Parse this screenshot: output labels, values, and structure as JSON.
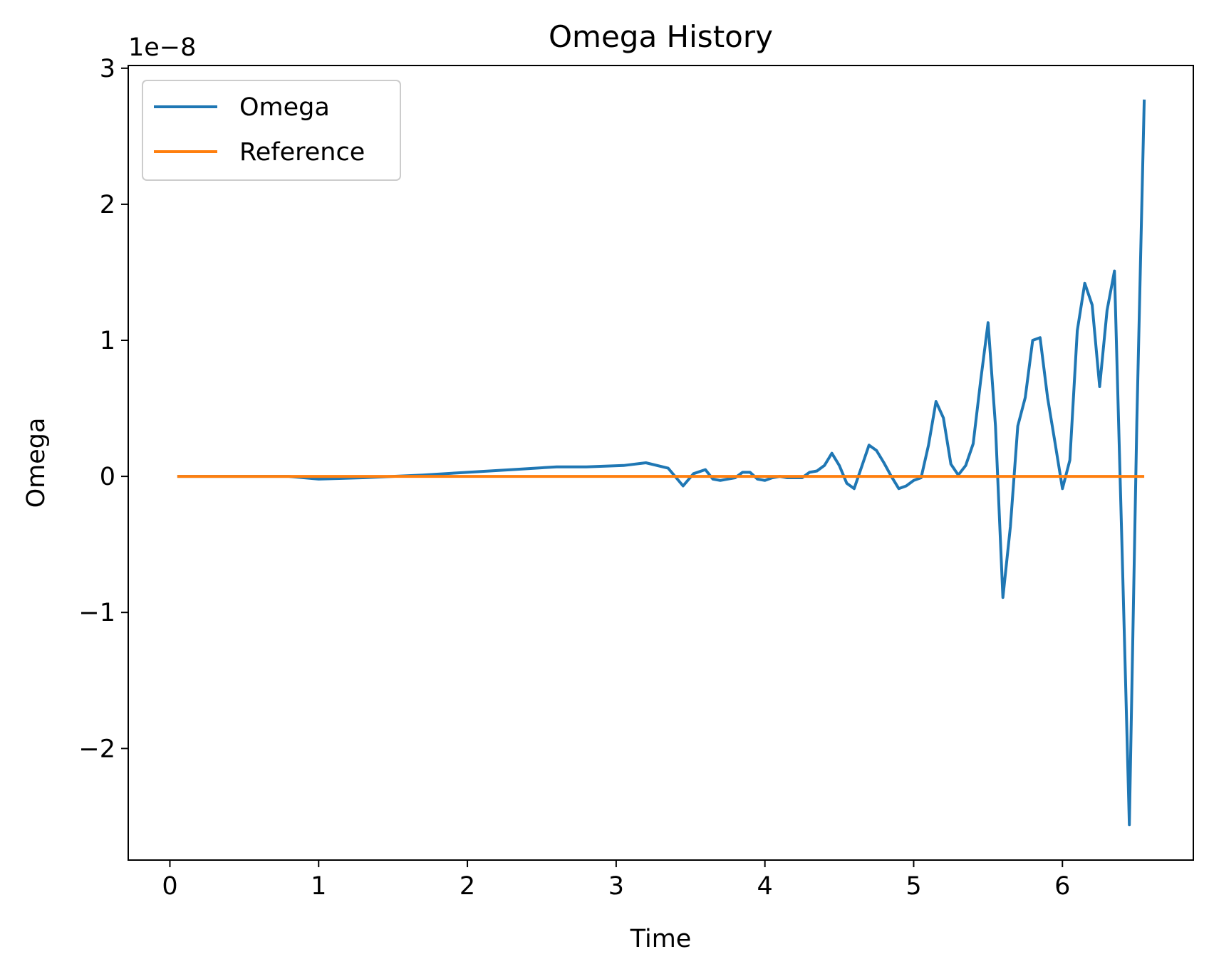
{
  "chart_data": {
    "type": "line",
    "title": "Omega History",
    "xlabel": "Time",
    "ylabel": "Omega",
    "y_offset_label": "1e−8",
    "xlim": [
      -0.28,
      6.88
    ],
    "ylim": [
      -2.82,
      3.02
    ],
    "y_scale_exponent": -8,
    "xticks": [
      0,
      1,
      2,
      3,
      4,
      5,
      6
    ],
    "xtick_labels": [
      "0",
      "1",
      "2",
      "3",
      "4",
      "5",
      "6"
    ],
    "yticks": [
      -2,
      -1,
      0,
      1,
      2,
      3
    ],
    "ytick_labels": [
      "−2",
      "−1",
      "0",
      "1",
      "2",
      "3"
    ],
    "grid": false,
    "legend_position": "upper-left",
    "series": [
      {
        "name": "Omega",
        "color": "#1f77b4",
        "x": [
          0.05,
          0.3,
          0.6,
          0.8,
          1.0,
          1.3,
          1.5,
          1.7,
          2.0,
          2.3,
          2.6,
          2.8,
          3.05,
          3.2,
          3.35,
          3.45,
          3.52,
          3.6,
          3.65,
          3.7,
          3.8,
          3.85,
          3.9,
          3.95,
          4.0,
          4.05,
          4.1,
          4.15,
          4.2,
          4.25,
          4.3,
          4.35,
          4.4,
          4.45,
          4.5,
          4.55,
          4.6,
          4.65,
          4.7,
          4.75,
          4.8,
          4.85,
          4.9,
          4.95,
          5.0,
          5.05,
          5.1,
          5.15,
          5.2,
          5.25,
          5.3,
          5.35,
          5.4,
          5.45,
          5.5,
          5.55,
          5.6,
          5.65,
          5.7,
          5.75,
          5.8,
          5.85,
          5.9,
          5.95,
          6.0,
          6.05,
          6.1,
          6.15,
          6.2,
          6.25,
          6.3,
          6.35,
          6.4,
          6.45,
          6.5,
          6.55
        ],
        "values": [
          0.0,
          0.0,
          0.0,
          0.0,
          -0.02,
          -0.01,
          0.0,
          0.01,
          0.03,
          0.05,
          0.07,
          0.07,
          0.08,
          0.1,
          0.06,
          -0.07,
          0.02,
          0.05,
          -0.02,
          -0.03,
          -0.01,
          0.03,
          0.03,
          -0.02,
          -0.03,
          -0.01,
          0.0,
          -0.01,
          -0.01,
          -0.01,
          0.03,
          0.04,
          0.08,
          0.17,
          0.08,
          -0.05,
          -0.09,
          0.07,
          0.23,
          0.19,
          0.1,
          0.0,
          -0.09,
          -0.07,
          -0.03,
          -0.01,
          0.23,
          0.55,
          0.43,
          0.09,
          0.01,
          0.08,
          0.24,
          0.7,
          1.13,
          0.37,
          -0.89,
          -0.37,
          0.37,
          0.58,
          1.0,
          1.02,
          0.58,
          0.25,
          -0.09,
          0.12,
          1.07,
          1.42,
          1.26,
          0.66,
          1.22,
          1.51,
          -0.5,
          -2.56,
          0.4,
          2.77
        ]
      },
      {
        "name": "Reference",
        "color": "#ff7f0e",
        "x": [
          0.05,
          6.55
        ],
        "values": [
          0.0,
          0.0
        ]
      }
    ]
  }
}
